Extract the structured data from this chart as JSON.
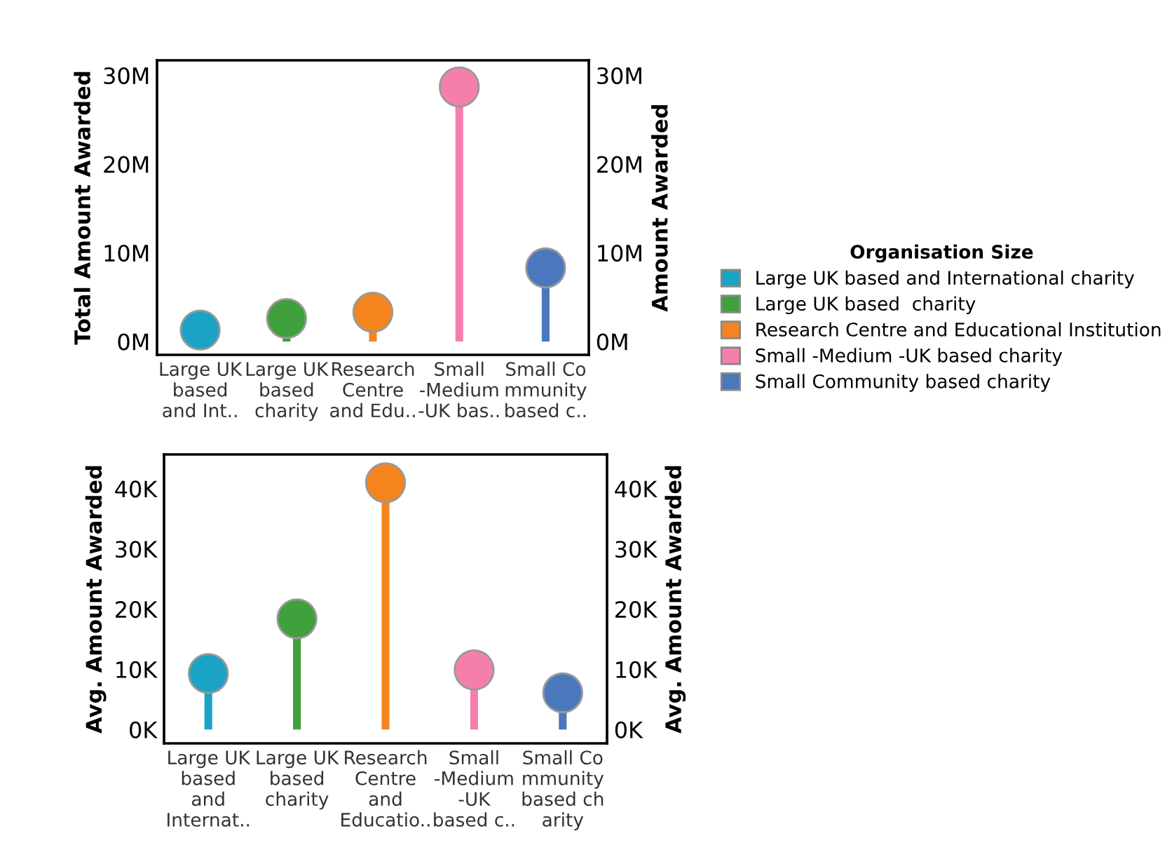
{
  "chart_data": [
    {
      "type": "lollipop",
      "ylabel": "Total Amount Awarded",
      "y2label": "Amount Awarded",
      "legend_title": "Organisation Size",
      "legend": "right",
      "marker": "circle",
      "categories": [
        "Large UK\nbased\nand Int..",
        "Large UK\nbased\ncharity",
        "Research\nCentre\nand Edu..",
        "Small\n-Medium\n-UK bas..",
        "Small Co\nmmunity\nbased c.."
      ],
      "series": [
        {
          "name": "Large UK based and International charity",
          "color": "#1ba3c6",
          "values": [
            1300000,
            null,
            null,
            null,
            null
          ]
        },
        {
          "name": "Large UK based  charity",
          "color": "#3fa03c",
          "values": [
            null,
            2600000,
            null,
            null,
            null
          ]
        },
        {
          "name": "Research Centre and Educational Institution",
          "color": "#f5841f",
          "values": [
            null,
            null,
            3300000,
            null,
            null
          ]
        },
        {
          "name": "Small -Medium -UK based charity",
          "color": "#f47fad",
          "values": [
            null,
            null,
            null,
            28700000,
            null
          ]
        },
        {
          "name": "Small Community based charity",
          "color": "#4b78bd",
          "values": [
            null,
            null,
            null,
            null,
            8300000
          ]
        }
      ],
      "ylim": [
        -1500000,
        31700000
      ],
      "yticks": [
        {
          "value": 0,
          "label": "0M"
        },
        {
          "value": 10000000,
          "label": "10M"
        },
        {
          "value": 20000000,
          "label": "20M"
        },
        {
          "value": 30000000,
          "label": "30M"
        }
      ],
      "y2lim": [
        -1500000,
        31700000
      ],
      "y2ticks": [
        {
          "value": 0,
          "label": "0M"
        },
        {
          "value": 10000000,
          "label": "10M"
        },
        {
          "value": 20000000,
          "label": "20M"
        },
        {
          "value": 30000000,
          "label": "30M"
        }
      ]
    },
    {
      "type": "lollipop",
      "ylabel": "Avg. Amount Awarded",
      "y2label": "Avg. Amount Awarded",
      "marker": "circle",
      "categories": [
        "Large UK\nbased\nand\nInternat..",
        "Large UK\nbased\ncharity",
        "Research\nCentre\nand\nEducatio..",
        "Small\n-Medium\n-UK\nbased c..",
        "Small Co\nmmunity\nbased ch\narity"
      ],
      "series": [
        {
          "color": "#1ba3c6",
          "values": [
            9300,
            null,
            null,
            null,
            null
          ]
        },
        {
          "color": "#3fa03c",
          "values": [
            null,
            18400,
            null,
            null,
            null
          ]
        },
        {
          "color": "#f5841f",
          "values": [
            null,
            null,
            41000,
            null,
            null
          ]
        },
        {
          "color": "#f47fad",
          "values": [
            null,
            null,
            null,
            9900,
            null
          ]
        },
        {
          "color": "#4b78bd",
          "values": [
            null,
            null,
            null,
            null,
            6100
          ]
        }
      ],
      "ylim": [
        -2300,
        45700
      ],
      "yticks": [
        {
          "value": 0,
          "label": "0K"
        },
        {
          "value": 10000,
          "label": "10K"
        },
        {
          "value": 20000,
          "label": "20K"
        },
        {
          "value": 30000,
          "label": "30K"
        },
        {
          "value": 40000,
          "label": "40K"
        }
      ],
      "y2lim": [
        -2300,
        45700
      ],
      "y2ticks": [
        {
          "value": 0,
          "label": "0K"
        },
        {
          "value": 10000,
          "label": "10K"
        },
        {
          "value": 20000,
          "label": "20K"
        },
        {
          "value": 30000,
          "label": "30K"
        },
        {
          "value": 40000,
          "label": "40K"
        }
      ]
    }
  ]
}
